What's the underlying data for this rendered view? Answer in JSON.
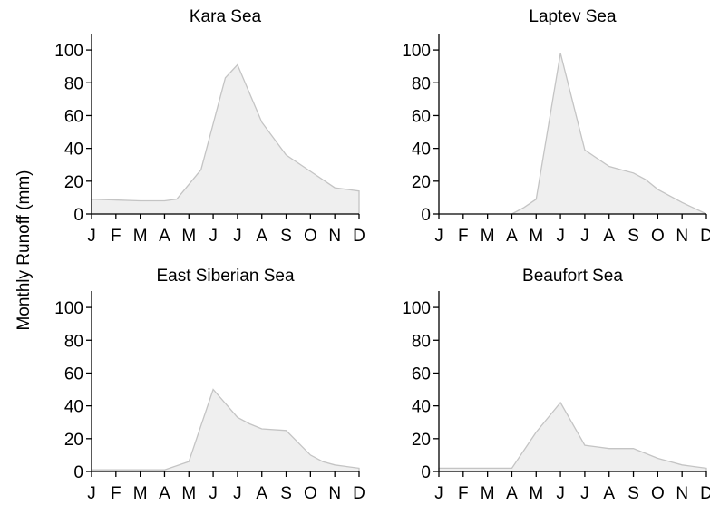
{
  "chart_data": [
    {
      "type": "area",
      "title": "Kara Sea",
      "categories": [
        "J",
        "F",
        "M",
        "A",
        "M",
        "J",
        "J",
        "A",
        "S",
        "O",
        "N",
        "D"
      ],
      "yticks": [
        0,
        20,
        40,
        60,
        80,
        100
      ],
      "ylim": [
        0,
        110
      ],
      "x": [
        1,
        3,
        4,
        4.5,
        5,
        5.5,
        6,
        6.5,
        7,
        8,
        9,
        10,
        11,
        11.5,
        12
      ],
      "values": [
        9,
        8,
        8,
        9,
        18,
        27,
        55,
        83,
        91,
        56,
        36,
        26,
        16,
        15,
        14
      ]
    },
    {
      "type": "area",
      "title": "Laptev Sea",
      "categories": [
        "J",
        "F",
        "M",
        "A",
        "M",
        "J",
        "J",
        "A",
        "S",
        "O",
        "N",
        "D"
      ],
      "yticks": [
        0,
        20,
        40,
        60,
        80,
        100
      ],
      "ylim": [
        0,
        110
      ],
      "x": [
        4,
        4.5,
        5,
        6,
        7,
        7.5,
        8,
        8.5,
        9,
        9.5,
        10,
        11,
        12
      ],
      "values": [
        0,
        4,
        9,
        98,
        39,
        34,
        29,
        27,
        25,
        21,
        15,
        7,
        0
      ]
    },
    {
      "type": "area",
      "title": "East Siberian Sea",
      "categories": [
        "J",
        "F",
        "M",
        "A",
        "M",
        "J",
        "J",
        "A",
        "S",
        "O",
        "N",
        "D"
      ],
      "yticks": [
        0,
        20,
        40,
        60,
        80,
        100
      ],
      "ylim": [
        0,
        110
      ],
      "x": [
        1,
        2,
        3,
        4,
        5,
        6,
        7,
        7.5,
        8,
        9,
        10,
        10.5,
        11,
        11.5,
        12
      ],
      "values": [
        1,
        1,
        1,
        1,
        6,
        50,
        33,
        29,
        26,
        25,
        10,
        6,
        4,
        3,
        2
      ]
    },
    {
      "type": "area",
      "title": "Beaufort Sea",
      "categories": [
        "J",
        "F",
        "M",
        "A",
        "M",
        "J",
        "J",
        "A",
        "S",
        "O",
        "N",
        "D"
      ],
      "yticks": [
        0,
        20,
        40,
        60,
        80,
        100
      ],
      "ylim": [
        0,
        110
      ],
      "x": [
        1,
        2,
        3,
        4,
        5,
        6,
        7,
        7.5,
        8,
        8.5,
        9,
        10,
        11,
        11.5,
        12
      ],
      "values": [
        2,
        2,
        2,
        2,
        24,
        42,
        16,
        15,
        14,
        14,
        14,
        8,
        4,
        3,
        2
      ]
    }
  ],
  "ylabel": "Monthly Runoff (mm)"
}
